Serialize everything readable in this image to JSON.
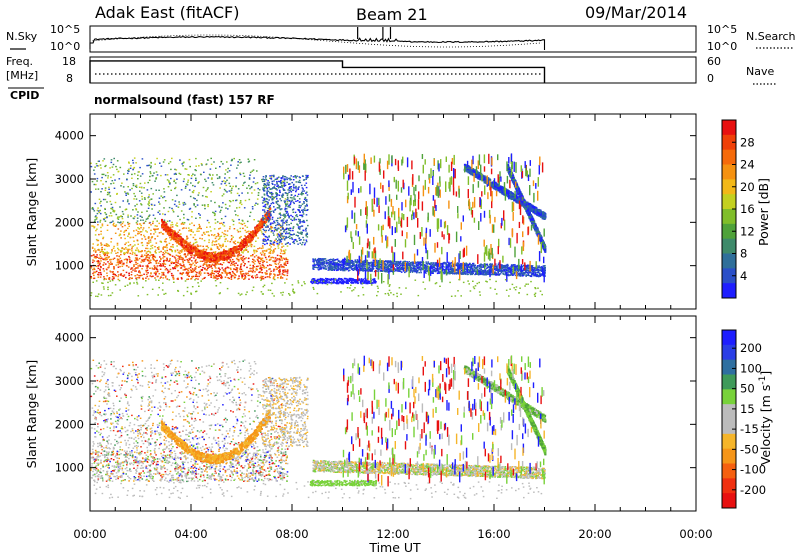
{
  "header": {
    "station": "Adak East (fitACF)",
    "beam": "Beam 21",
    "date": "09/Mar/2014"
  },
  "noise_panel": {
    "left_label": "N.Sky",
    "right_label": "N.Search",
    "left_ticks": [
      "10^5",
      "10^0"
    ],
    "right_ticks": [
      "10^5",
      "10^0"
    ]
  },
  "freq_panel": {
    "left_label_1": "Freq.",
    "left_label_2": "[MHz]",
    "right_label": "Nave",
    "left_ticks": [
      "18",
      "8"
    ],
    "right_ticks": [
      "60",
      "0"
    ],
    "freq_steps": [
      {
        "x": 0.0,
        "mhz": 16.5
      },
      {
        "x": 10.0,
        "mhz": 14.0
      },
      {
        "x": 18.0,
        "mhz": 0
      }
    ]
  },
  "cpid": {
    "label": "CPID",
    "value": "normalsound (fast) 157 RF"
  },
  "chart_data": [
    {
      "type": "heatmap",
      "quantity": "Power",
      "xlabel": "",
      "ylabel": "Slant Range [km]",
      "x_range_hours": [
        0,
        24
      ],
      "ylim": [
        0,
        4500
      ],
      "y_ticks": [
        "1000",
        "2000",
        "3000",
        "4000"
      ],
      "colorbar": {
        "label": "Power [dB]",
        "ticks": [
          "4",
          "8",
          "12",
          "16",
          "20",
          "24",
          "28"
        ],
        "colors": [
          "#1e1eff",
          "#2a4fc8",
          "#2f6f9a",
          "#3e8a6a",
          "#4fa23a",
          "#80be2a",
          "#c3d020",
          "#f2b818",
          "#f59110",
          "#f56a0a",
          "#f04008",
          "#e81010"
        ]
      }
    },
    {
      "type": "heatmap",
      "quantity": "Velocity",
      "xlabel": "Time UT",
      "ylabel": "Slant Range [km]",
      "x_range_hours": [
        0,
        24
      ],
      "ylim": [
        0,
        4500
      ],
      "y_ticks": [
        "1000",
        "2000",
        "3000",
        "4000"
      ],
      "x_ticks": [
        "00:00",
        "04:00",
        "08:00",
        "12:00",
        "16:00",
        "20:00",
        "00:00"
      ],
      "colorbar": {
        "label": "Velocity [m s",
        "label_sup": "-1",
        "label_end": "]",
        "ticks": [
          "200",
          "100",
          "50",
          "15",
          "-15",
          "-50",
          "-100",
          "-200"
        ],
        "colors": [
          "#1e1eff",
          "#2a3ee6",
          "#2f6fa0",
          "#3f9a5a",
          "#78d23a",
          "#bcbcbc",
          "#bcbcbc",
          "#f5b52a",
          "#f59518",
          "#f56010",
          "#f03010",
          "#e81010"
        ]
      }
    }
  ]
}
